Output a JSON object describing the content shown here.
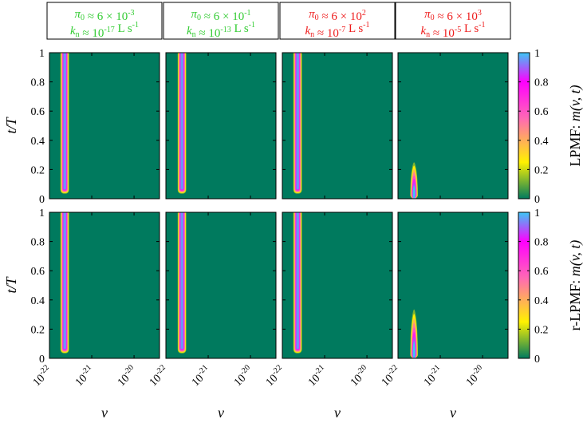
{
  "chart_data": {
    "type": "heatmap",
    "panel_headers": [
      {
        "line1": "π0 ≈ 6 × 10^-3",
        "line2": "kn ≈ 10^-17 L s^-1",
        "color": "#33cc33"
      },
      {
        "line1": "π0 ≈ 6 × 10^-1",
        "line2": "kn ≈ 10^-13 L s^-1",
        "color": "#33cc33"
      },
      {
        "line1": "π0 ≈ 6 × 10^2",
        "line2": "kn ≈ 10^-7 L s^-1",
        "color": "#ee1c1c"
      },
      {
        "line1": "π0 ≈ 6 × 10^3",
        "line2": "kn ≈ 10^-5 L s^-1",
        "color": "#ee1c1c"
      }
    ],
    "rows": [
      {
        "label": "LPMF: m(v, t)"
      },
      {
        "label": "r-LPMF: m(v, t)"
      }
    ],
    "xlabel": "v",
    "ylabel": "t/T",
    "x_scale": "log",
    "xlim": [
      1e-22,
      4e-20
    ],
    "x_ticks": [
      "10^-22",
      "10^-21",
      "10^-20"
    ],
    "ylim": [
      0,
      1
    ],
    "y_ticks": [
      0,
      0.2,
      0.4,
      0.6,
      0.8,
      1
    ],
    "colorbar_ticks": [
      0,
      0.2,
      0.4,
      0.6,
      0.8,
      1
    ],
    "colorscale": [
      "#007a5e",
      "#fff200",
      "#ff69b4",
      "#ff00ff",
      "#3cc7f5"
    ],
    "background_color": "#007a5e",
    "panels": [
      {
        "row": 0,
        "col": 0,
        "peak_v": 2.3e-22,
        "width_decades": 0.09,
        "start_t": 0.03,
        "end_t": 1.0,
        "peak_value": 0.95
      },
      {
        "row": 0,
        "col": 1,
        "peak_v": 2.4e-22,
        "width_decades": 0.09,
        "start_t": 0.03,
        "end_t": 1.0,
        "peak_value": 0.95
      },
      {
        "row": 0,
        "col": 2,
        "peak_v": 2.3e-22,
        "width_decades": 0.09,
        "start_t": 0.03,
        "end_t": 1.0,
        "peak_value": 0.95
      },
      {
        "row": 0,
        "col": 3,
        "peak_v": 2.4e-22,
        "width_decades": 0.08,
        "start_t": 0.02,
        "end_t": 0.26,
        "peak_value": 1.0
      },
      {
        "row": 1,
        "col": 0,
        "peak_v": 2.3e-22,
        "width_decades": 0.09,
        "start_t": 0.03,
        "end_t": 1.0,
        "peak_value": 0.95
      },
      {
        "row": 1,
        "col": 1,
        "peak_v": 2.4e-22,
        "width_decades": 0.09,
        "start_t": 0.03,
        "end_t": 1.0,
        "peak_value": 0.95
      },
      {
        "row": 1,
        "col": 2,
        "peak_v": 2.3e-22,
        "width_decades": 0.09,
        "start_t": 0.03,
        "end_t": 1.0,
        "peak_value": 0.95
      },
      {
        "row": 1,
        "col": 3,
        "peak_v": 2.4e-22,
        "width_decades": 0.08,
        "start_t": 0.02,
        "end_t": 0.35,
        "peak_value": 1.0
      }
    ]
  }
}
